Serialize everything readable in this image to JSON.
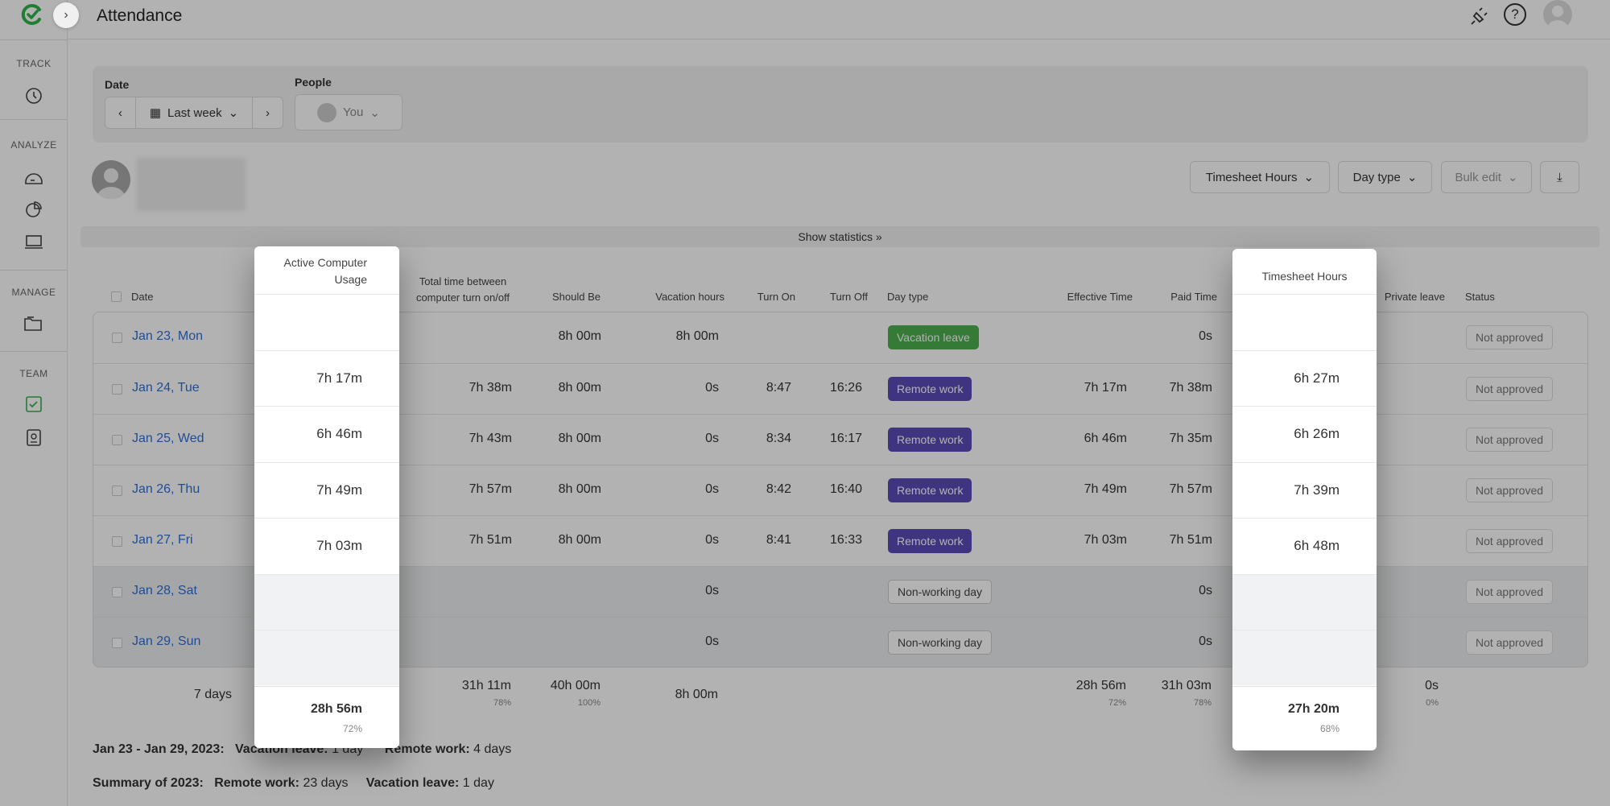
{
  "header": {
    "title": "Attendance"
  },
  "sidebar": {
    "sections": [
      "TRACK",
      "ANALYZE",
      "MANAGE",
      "TEAM"
    ]
  },
  "filters": {
    "date_label": "Date",
    "date_value": "Last week",
    "people_label": "People",
    "people_value": "You"
  },
  "toolbar": {
    "timesheet_hours": "Timesheet Hours",
    "day_type": "Day type",
    "bulk_edit": "Bulk edit"
  },
  "show_statistics": "Show statistics",
  "columns": {
    "date": "Date",
    "total_time": "Total time between computer turn on/off",
    "should_be": "Should Be",
    "vacation_hours": "Vacation hours",
    "turn_on": "Turn On",
    "turn_off": "Turn Off",
    "day_type": "Day type",
    "effective_time": "Effective Time",
    "paid_time": "Paid Time",
    "private_leave": "Private leave",
    "status": "Status"
  },
  "rows": [
    {
      "date": "Jan 23, Mon",
      "total": "",
      "should": "8h 00m",
      "vacation": "8h 00m",
      "on": "",
      "off": "",
      "day_type": "Vacation leave",
      "type": "vacation",
      "effective": "",
      "paid": "0s",
      "status": "Not approved"
    },
    {
      "date": "Jan 24, Tue",
      "total": "7h 38m",
      "should": "8h 00m",
      "vacation": "0s",
      "on": "8:47",
      "off": "16:26",
      "day_type": "Remote work",
      "type": "remote",
      "effective": "7h 17m",
      "paid": "7h 38m",
      "status": "Not approved"
    },
    {
      "date": "Jan 25, Wed",
      "total": "7h 43m",
      "should": "8h 00m",
      "vacation": "0s",
      "on": "8:34",
      "off": "16:17",
      "day_type": "Remote work",
      "type": "remote",
      "effective": "6h 46m",
      "paid": "7h 35m",
      "status": "Not approved"
    },
    {
      "date": "Jan 26, Thu",
      "total": "7h 57m",
      "should": "8h 00m",
      "vacation": "0s",
      "on": "8:42",
      "off": "16:40",
      "day_type": "Remote work",
      "type": "remote",
      "effective": "7h 49m",
      "paid": "7h 57m",
      "status": "Not approved"
    },
    {
      "date": "Jan 27, Fri",
      "total": "7h 51m",
      "should": "8h 00m",
      "vacation": "0s",
      "on": "8:41",
      "off": "16:33",
      "day_type": "Remote work",
      "type": "remote",
      "effective": "7h 03m",
      "paid": "7h 51m",
      "status": "Not approved"
    },
    {
      "date": "Jan 28, Sat",
      "total": "",
      "should": "",
      "vacation": "0s",
      "on": "",
      "off": "",
      "day_type": "Non-working day",
      "type": "off",
      "effective": "",
      "paid": "0s",
      "status": "Not approved"
    },
    {
      "date": "Jan 29, Sun",
      "total": "",
      "should": "",
      "vacation": "0s",
      "on": "",
      "off": "",
      "day_type": "Non-working day",
      "type": "off",
      "effective": "",
      "paid": "0s",
      "status": "Not approved"
    }
  ],
  "totals": {
    "days": "7 days",
    "total": "31h 11m",
    "total_pct": "78%",
    "should": "40h 00m",
    "should_pct": "100%",
    "vacation": "8h 00m",
    "effective": "28h 56m",
    "effective_pct": "72%",
    "paid": "31h 03m",
    "paid_pct": "78%",
    "private": "0s",
    "private_pct": "0%"
  },
  "popup_active": {
    "title": "Active Computer Usage",
    "values": [
      "",
      "7h 17m",
      "6h 46m",
      "7h 49m",
      "7h 03m",
      "",
      ""
    ],
    "total": "28h 56m",
    "pct": "72%"
  },
  "popup_timesheet": {
    "title": "Timesheet Hours",
    "values": [
      "",
      "6h 27m",
      "6h 26m",
      "7h 39m",
      "6h 48m",
      "",
      ""
    ],
    "total": "27h 20m",
    "pct": "68%"
  },
  "summary": {
    "week": {
      "label": "Jan 23 - Jan 29, 2023:",
      "items": [
        {
          "k": "Vacation leave:",
          "v": "1 day"
        },
        {
          "k": "Remote work:",
          "v": "4 days"
        }
      ]
    },
    "year": {
      "label": "Summary of 2023:",
      "items": [
        {
          "k": "Remote work:",
          "v": "23 days"
        },
        {
          "k": "Vacation leave:",
          "v": "1 day"
        }
      ]
    }
  },
  "colors": {
    "vacation": "#4caf50",
    "remote": "#5b4bb7",
    "link": "#2f6fd8"
  }
}
